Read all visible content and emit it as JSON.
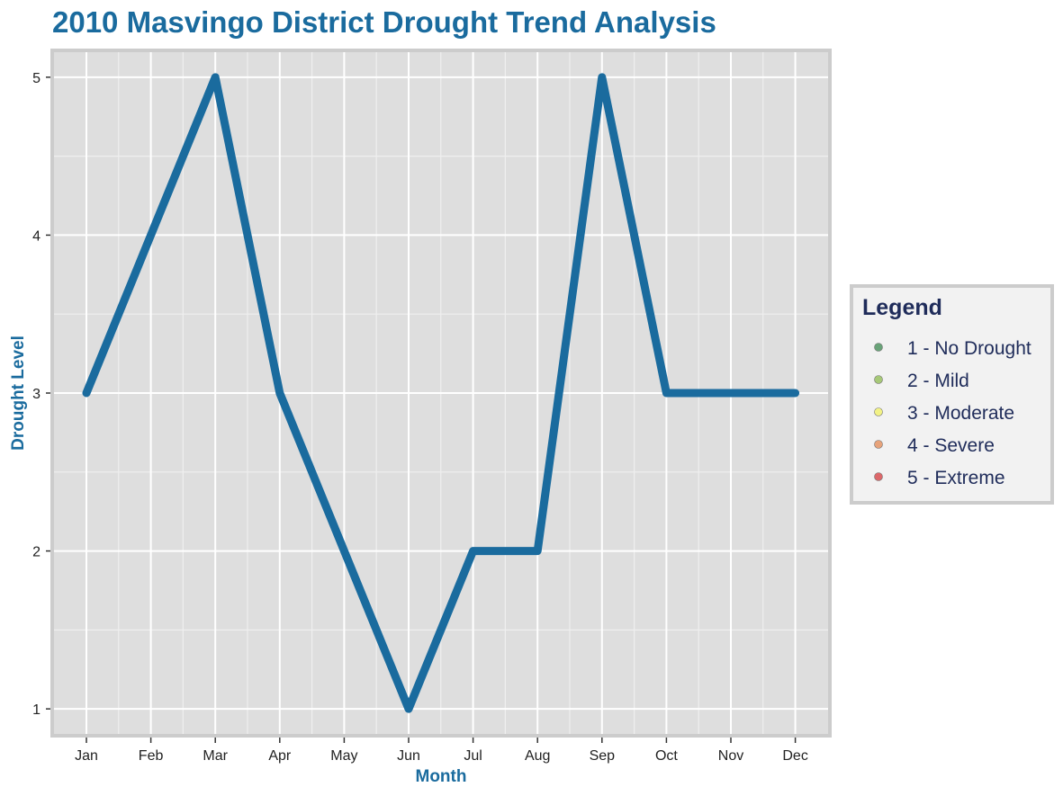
{
  "chart_data": {
    "type": "line",
    "title": "2010 Masvingo District Drought Trend Analysis",
    "xlabel": "Month",
    "ylabel": "Drought Level",
    "categories": [
      "Jan",
      "Feb",
      "Mar",
      "Apr",
      "May",
      "Jun",
      "Jul",
      "Aug",
      "Sep",
      "Oct",
      "Nov",
      "Dec"
    ],
    "series": [
      {
        "values": [
          3,
          4,
          5,
          3,
          2,
          1,
          2,
          2,
          5,
          3,
          3,
          3
        ],
        "color": "#1a6b9e"
      }
    ],
    "ylim": [
      0.83,
      5.17
    ],
    "yticks": [
      "1",
      "2",
      "3",
      "4",
      "5"
    ],
    "grid": true,
    "legend": {
      "title": "Legend",
      "placement": "right",
      "entries": [
        {
          "label": "1 - No Drought",
          "color": "#5a9a6a"
        },
        {
          "label": "2 - Mild",
          "color": "#9fc46a"
        },
        {
          "label": "3 - Moderate",
          "color": "#f2f27a"
        },
        {
          "label": "4 - Severe",
          "color": "#e69a6e"
        },
        {
          "label": "5 - Extreme",
          "color": "#d9595b"
        }
      ]
    }
  },
  "colors": {
    "title": "#1a6b9e",
    "axis_title": "#1a6b9e",
    "legend_text": "#1f2c5a",
    "panel_background": "#dedede",
    "panel_border": "#cccccc",
    "grid_major": "#ffffff",
    "grid_minor": "#efefef"
  }
}
